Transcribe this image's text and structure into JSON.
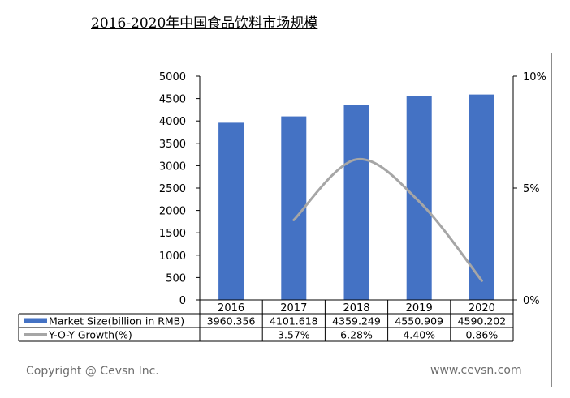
{
  "page": {
    "title": "2016-2020年中国食品饮料市场规模",
    "copyright": "Copyright @ Cevsn Inc.",
    "website": "www.cevsn.com"
  },
  "chart_data": {
    "type": "bar",
    "categories": [
      "2016",
      "2017",
      "2018",
      "2019",
      "2020"
    ],
    "series": [
      {
        "name": "Market Size(billion in RMB)",
        "type": "bar",
        "axis": "left",
        "color": "#4472c4",
        "values": [
          3960.356,
          4101.618,
          4359.249,
          4550.909,
          4590.202
        ],
        "labels": [
          "3960.356",
          "4101.618",
          "4359.249",
          "4550.909",
          "4590.202"
        ]
      },
      {
        "name": "Y-O-Y Growth(%)",
        "type": "line",
        "axis": "right",
        "color": "#a6a6a6",
        "values": [
          null,
          3.57,
          6.28,
          4.4,
          0.86
        ],
        "labels": [
          "",
          "3.57%",
          "6.28%",
          "4.40%",
          "0.86%"
        ]
      }
    ],
    "y_left": {
      "ylim": [
        0,
        5000
      ],
      "ticks": [
        "0",
        "500",
        "1000",
        "1500",
        "2000",
        "2500",
        "3000",
        "3500",
        "4000",
        "4500",
        "5000"
      ]
    },
    "y_right": {
      "ylim": [
        0,
        10
      ],
      "ticks": [
        "0%",
        "5%",
        "10%"
      ]
    },
    "data_table": true,
    "grid": false
  }
}
